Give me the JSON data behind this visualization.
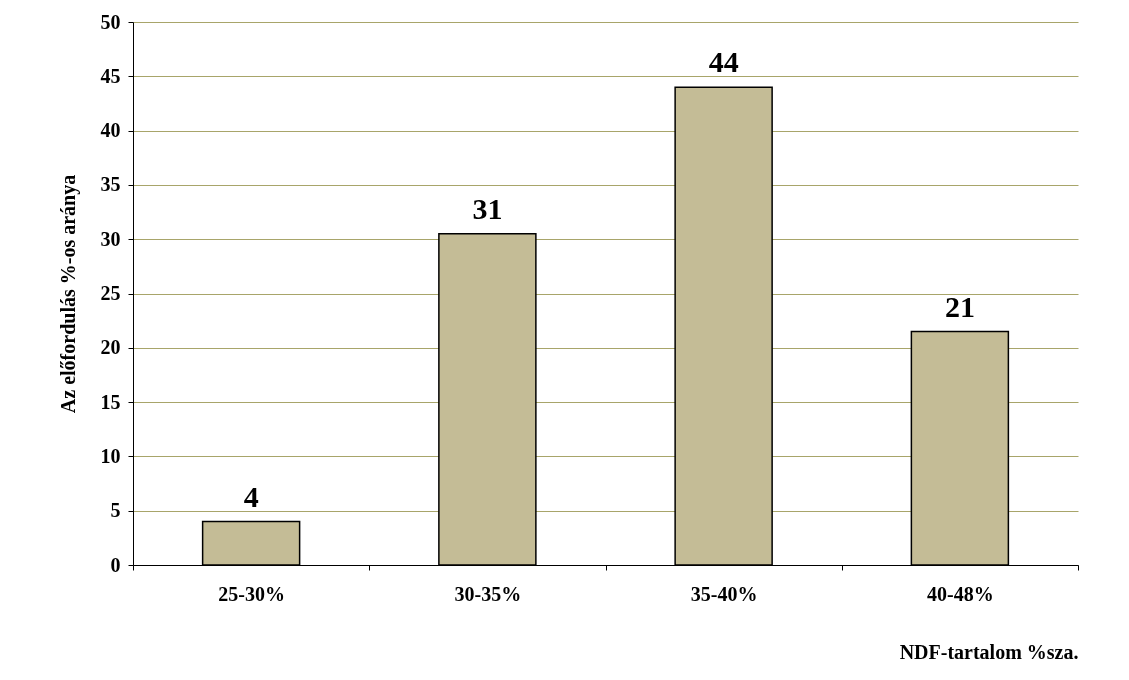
{
  "chart_data": {
    "type": "bar",
    "xlabel": "NDF-tartalom %sza.",
    "ylabel": "Az előfordulás %-os aránya",
    "categories": [
      "25-30%",
      "30-35%",
      "35-40%",
      "40-48%"
    ],
    "values": [
      4,
      30.5,
      44,
      21.5
    ],
    "value_labels": [
      "4",
      "31",
      "44",
      "21"
    ],
    "color": "#c4bc96",
    "ylim": [
      0,
      50
    ],
    "yticks": [
      0,
      5,
      10,
      15,
      20,
      25,
      30,
      35,
      40,
      45,
      50
    ],
    "grid": "y"
  }
}
